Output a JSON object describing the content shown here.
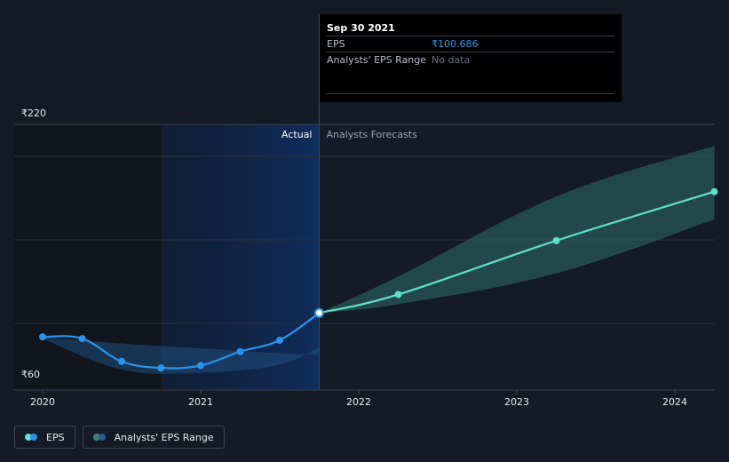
{
  "chart_data": {
    "type": "line",
    "currency": "₹",
    "y_ticks": [
      {
        "value": 220,
        "label": "₹220"
      },
      {
        "value": 60,
        "label": "₹60"
      }
    ],
    "ylim": [
      60,
      220
    ],
    "x_ticks": [
      {
        "value": 2020,
        "label": "2020"
      },
      {
        "value": 2021,
        "label": "2021"
      },
      {
        "value": 2022,
        "label": "2022"
      },
      {
        "value": 2023,
        "label": "2023"
      },
      {
        "value": 2024,
        "label": "2024"
      }
    ],
    "xlim": [
      2019.83,
      2024.25
    ],
    "region_labels": {
      "actual": "Actual",
      "forecast": "Analysts Forecasts"
    },
    "divider_x": 2021.75,
    "highlight_start_x": 2020.75,
    "series": [
      {
        "name": "EPS",
        "kind": "actual",
        "color": "#2d93e8",
        "points": [
          {
            "x": 2020.0,
            "y": 86
          },
          {
            "x": 2020.25,
            "y": 85
          },
          {
            "x": 2020.5,
            "y": 71
          },
          {
            "x": 2020.75,
            "y": 67
          },
          {
            "x": 2021.0,
            "y": 68.5
          },
          {
            "x": 2021.25,
            "y": 77
          },
          {
            "x": 2021.5,
            "y": 84
          },
          {
            "x": 2021.75,
            "y": 100.686
          }
        ]
      },
      {
        "name": "EPS",
        "kind": "forecast",
        "color": "#5ee0c8",
        "points": [
          {
            "x": 2021.75,
            "y": 100.686
          },
          {
            "x": 2022.25,
            "y": 112
          },
          {
            "x": 2023.25,
            "y": 145
          },
          {
            "x": 2024.25,
            "y": 175
          }
        ]
      }
    ],
    "actual_range_band": {
      "upper": [
        [
          2020.0,
          86
        ],
        [
          2020.5,
          82
        ],
        [
          2021.0,
          79
        ],
        [
          2021.5,
          76
        ],
        [
          2021.75,
          75
        ]
      ],
      "lower": [
        [
          2021.75,
          80
        ],
        [
          2021.5,
          69
        ],
        [
          2021.0,
          64
        ],
        [
          2020.5,
          66
        ],
        [
          2020.0,
          85
        ]
      ]
    },
    "forecast_range_band": {
      "upper": [
        [
          2021.75,
          100.686
        ],
        [
          2022.25,
          123
        ],
        [
          2023.25,
          172
        ],
        [
          2024.25,
          203
        ]
      ],
      "lower": [
        [
          2024.25,
          158
        ],
        [
          2023.25,
          125
        ],
        [
          2022.25,
          106
        ],
        [
          2021.75,
          100.686
        ]
      ]
    }
  },
  "tooltip": {
    "date": "Sep 30 2021",
    "rows": [
      {
        "label": "EPS",
        "value": "₹100.686"
      },
      {
        "label": "Analysts' EPS Range",
        "value": "No data"
      }
    ]
  },
  "legend": [
    {
      "label": "EPS",
      "color1": "#5ee0c8",
      "color2": "#2d93e8"
    },
    {
      "label": "Analysts' EPS Range",
      "color1": "#3d7e78",
      "color2": "#2a5b88"
    }
  ]
}
